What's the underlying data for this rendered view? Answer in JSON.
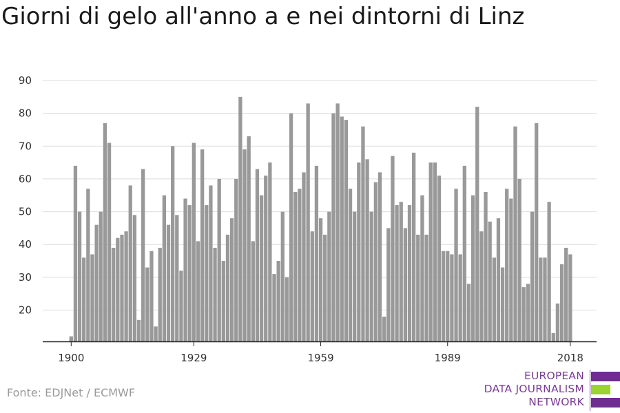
{
  "title": "Giorni di gelo all'anno a e nei dintorni di Linz",
  "source": "Fonte: EDJNet / ECMWF",
  "logo": {
    "lines": [
      "EUROPEAN",
      "DATA JOURNALISM",
      "NETWORK"
    ],
    "colors": {
      "purple": "#6f2c91",
      "green": "#9bd42a"
    }
  },
  "chart_data": {
    "type": "bar",
    "title": "Giorni di gelo all'anno a e nei dintorni di Linz",
    "xlabel": "",
    "ylabel": "",
    "x_start": 1900,
    "x_end": 2018,
    "xticks": [
      1900,
      1929,
      1959,
      1989,
      2018
    ],
    "yticks": [
      20,
      30,
      40,
      50,
      60,
      70,
      80,
      90
    ],
    "ylim": [
      11,
      91
    ],
    "grid": true,
    "bar_color": "#999999",
    "values": [
      12,
      64,
      50,
      36,
      57,
      37,
      46,
      50,
      77,
      71,
      39,
      42,
      43,
      44,
      58,
      49,
      17,
      63,
      33,
      38,
      15,
      39,
      55,
      46,
      70,
      49,
      32,
      54,
      52,
      71,
      41,
      69,
      52,
      58,
      39,
      60,
      35,
      43,
      48,
      60,
      85,
      69,
      73,
      41,
      63,
      55,
      61,
      65,
      31,
      35,
      50,
      30,
      80,
      56,
      57,
      62,
      83,
      44,
      64,
      48,
      43,
      50,
      80,
      83,
      79,
      78,
      57,
      50,
      65,
      76,
      66,
      50,
      59,
      62,
      18,
      45,
      67,
      52,
      53,
      45,
      52,
      68,
      43,
      55,
      43,
      65,
      65,
      61,
      38,
      38,
      37,
      57,
      37,
      64,
      28,
      55,
      82,
      44,
      56,
      47,
      36,
      48,
      33,
      57,
      54,
      76,
      60,
      27,
      28,
      50,
      77,
      36,
      36,
      53,
      13,
      22,
      34,
      39,
      37
    ]
  }
}
